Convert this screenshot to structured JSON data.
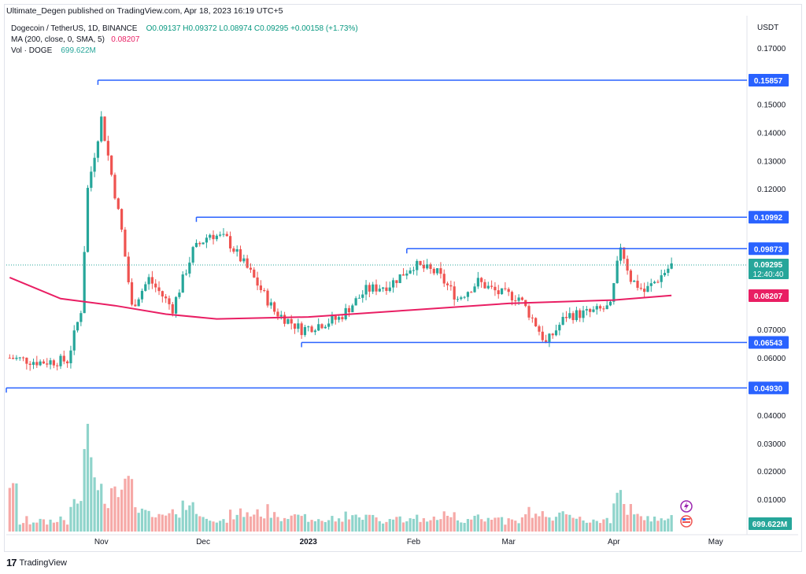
{
  "header": {
    "publish_text": "Ultimate_Degen published on TradingView.com, Apr 18, 2023 16:19 UTC+5"
  },
  "legend": {
    "symbol": "Dogecoin / TetherUS, 1D, BINANCE",
    "ohlc": "O0.09137 H0.09372 L0.08974 C0.09295 +0.00158 (+1.73%)",
    "ma_label": "MA (200, close, 0, SMA, 5)",
    "ma_value": "0.08207",
    "vol_label": "Vol · DOGE",
    "vol_value": "699.622M"
  },
  "currency": "USDT",
  "footer": {
    "brand": "TradingView"
  },
  "colors": {
    "up": "#26a69a",
    "down": "#ef5350",
    "ma": "#e91e63",
    "level": "#2962ff",
    "vol_up": "#8fd4cb",
    "vol_down": "#f6a9a7"
  },
  "chart_data": {
    "type": "candlestick",
    "price_axis": {
      "ticks": [
        "0.17000",
        "0.15000",
        "0.14000",
        "0.13000",
        "0.12000",
        "0.07000",
        "0.06000"
      ],
      "ylim": [
        0.0455,
        0.1775
      ]
    },
    "volume_axis": {
      "ticks": [
        "0.04000",
        "0.03000",
        "0.02000",
        "0.01000"
      ]
    },
    "x_axis": {
      "ticks": [
        "Nov",
        "Dec",
        "2023",
        "Feb",
        "Mar",
        "Apr",
        "May"
      ]
    },
    "horizontal_levels": [
      {
        "value": 0.15857,
        "label": "0.15857"
      },
      {
        "value": 0.10992,
        "label": "0.10992"
      },
      {
        "value": 0.09873,
        "label": "0.09873"
      },
      {
        "value": 0.06543,
        "label": "0.06543"
      },
      {
        "value": 0.0493,
        "label": "0.04930"
      }
    ],
    "current_price": {
      "value": 0.09295,
      "label": "0.09295",
      "countdown": "12:40:40"
    },
    "ma_price": {
      "value": 0.08207,
      "label": "0.08207"
    },
    "volume_label": "699.622M",
    "ma_series": [
      {
        "date": "2022-10-05",
        "value": 0.0885
      },
      {
        "date": "2022-10-20",
        "value": 0.081
      },
      {
        "date": "2022-11-05",
        "value": 0.0785
      },
      {
        "date": "2022-11-20",
        "value": 0.0755
      },
      {
        "date": "2022-12-05",
        "value": 0.0738
      },
      {
        "date": "2023-01-01",
        "value": 0.0745
      },
      {
        "date": "2023-02-01",
        "value": 0.077
      },
      {
        "date": "2023-03-01",
        "value": 0.0793
      },
      {
        "date": "2023-04-01",
        "value": 0.0805
      },
      {
        "date": "2023-04-18",
        "value": 0.0821
      }
    ],
    "price_path": [
      {
        "date": "2022-10-05",
        "value": 0.06
      },
      {
        "date": "2022-10-14",
        "value": 0.0585
      },
      {
        "date": "2022-10-22",
        "value": 0.059
      },
      {
        "date": "2022-10-26",
        "value": 0.077
      },
      {
        "date": "2022-10-28",
        "value": 0.12
      },
      {
        "date": "2022-11-01",
        "value": 0.145
      },
      {
        "date": "2022-11-04",
        "value": 0.125
      },
      {
        "date": "2022-11-07",
        "value": 0.105
      },
      {
        "date": "2022-11-10",
        "value": 0.078
      },
      {
        "date": "2022-11-15",
        "value": 0.088
      },
      {
        "date": "2022-11-22",
        "value": 0.0775
      },
      {
        "date": "2022-11-28",
        "value": 0.098
      },
      {
        "date": "2022-12-03",
        "value": 0.104
      },
      {
        "date": "2022-12-08",
        "value": 0.102
      },
      {
        "date": "2022-12-15",
        "value": 0.09
      },
      {
        "date": "2022-12-22",
        "value": 0.0765
      },
      {
        "date": "2022-12-30",
        "value": 0.07
      },
      {
        "date": "2023-01-10",
        "value": 0.074
      },
      {
        "date": "2023-01-18",
        "value": 0.084
      },
      {
        "date": "2023-01-25",
        "value": 0.086
      },
      {
        "date": "2023-02-01",
        "value": 0.093
      },
      {
        "date": "2023-02-08",
        "value": 0.09
      },
      {
        "date": "2023-02-14",
        "value": 0.081
      },
      {
        "date": "2023-02-20",
        "value": 0.087
      },
      {
        "date": "2023-02-26",
        "value": 0.083
      },
      {
        "date": "2023-03-04",
        "value": 0.0815
      },
      {
        "date": "2023-03-09",
        "value": 0.072
      },
      {
        "date": "2023-03-12",
        "value": 0.065
      },
      {
        "date": "2023-03-18",
        "value": 0.075
      },
      {
        "date": "2023-03-25",
        "value": 0.076
      },
      {
        "date": "2023-03-31",
        "value": 0.078
      },
      {
        "date": "2023-04-03",
        "value": 0.1
      },
      {
        "date": "2023-04-06",
        "value": 0.088
      },
      {
        "date": "2023-04-10",
        "value": 0.0835
      },
      {
        "date": "2023-04-14",
        "value": 0.088
      },
      {
        "date": "2023-04-18",
        "value": 0.09295
      }
    ]
  }
}
